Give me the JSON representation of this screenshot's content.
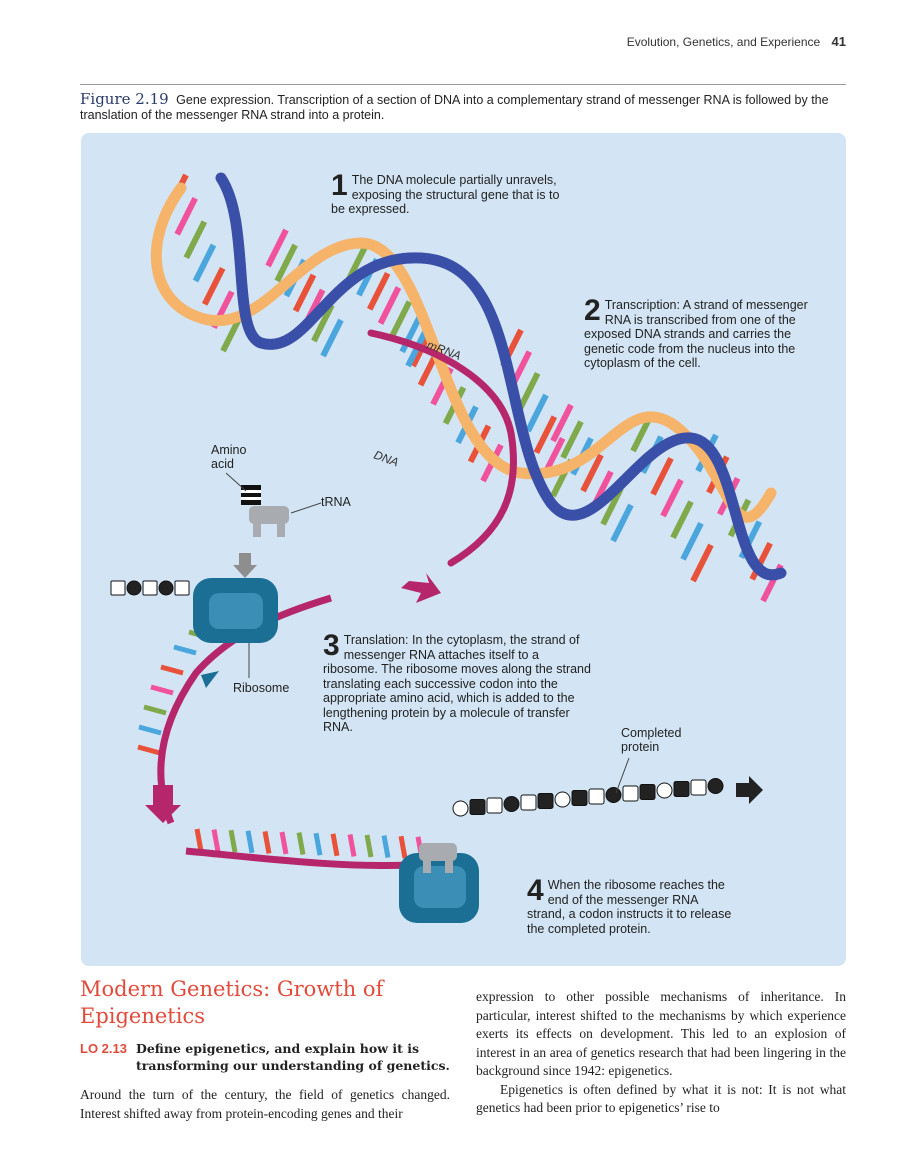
{
  "header": {
    "running_title": "Evolution, Genetics, and Experience",
    "page_number": "41"
  },
  "caption": {
    "label": "Figure 2.19",
    "text": "Gene expression. Transcription of a section of DNA into a complementary strand of messenger RNA is followed by the translation of the messenger RNA strand into a protein."
  },
  "figure": {
    "step1": {
      "num": "1",
      "text": "The DNA molecule partially unravels, exposing the structural gene that is to be expressed."
    },
    "step2": {
      "num": "2",
      "text": "Transcription: A strand of messenger RNA is transcribed from one of the exposed DNA strands and carries the genetic code from the nucleus into the cytoplasm of the cell."
    },
    "step3": {
      "num": "3",
      "text": "Translation: In the cytoplasm, the strand of messenger RNA attaches itself to a ribosome. The ribosome moves along the strand translating each successive codon into the appropriate amino acid, which is added to the lengthening protein by a molecule of transfer RNA."
    },
    "step4": {
      "num": "4",
      "text": "When the ribosome reaches the end of the messenger RNA strand, a codon instructs it to release the completed protein."
    },
    "labels": {
      "mrna": "mRNA",
      "dna": "DNA",
      "amino_acid": "Amino acid",
      "trna": "tRNA",
      "ribosome": "Ribosome",
      "completed_protein": "Completed protein"
    },
    "colors": {
      "background": "#d3e5f4",
      "strand_blue": "#3a4fa8",
      "strand_orange": "#f6b36a",
      "mrna_strand": "#b5266a",
      "base_red": "#e8513a",
      "base_pink": "#f0529b",
      "base_green": "#7fa94a",
      "base_blue": "#4ba6de",
      "ribosome": "#1c6f94",
      "trna": "#a8acb0",
      "arrow": "#b5266a"
    }
  },
  "section": {
    "title": "Modern Genetics: Growth of Epigenetics",
    "lo_code": "LO 2.13",
    "lo_text": "Define epigenetics, and explain how it is transforming our understanding of genetics.",
    "left_paragraph": "Around the turn of the century, the field of genetics changed. Interest shifted away from protein-encoding genes and their",
    "right_paragraph_1": "expression to other possible mechanisms of inheritance. In particular, interest shifted to the mechanisms by which experience exerts its effects on development. This led to an explosion of interest in an area of genetics research that had been lingering in the background since 1942: epigenetics.",
    "right_paragraph_2": "Epigenetics is often defined by what it is not: It is not what genetics had been prior to epigenetics’ rise to"
  }
}
